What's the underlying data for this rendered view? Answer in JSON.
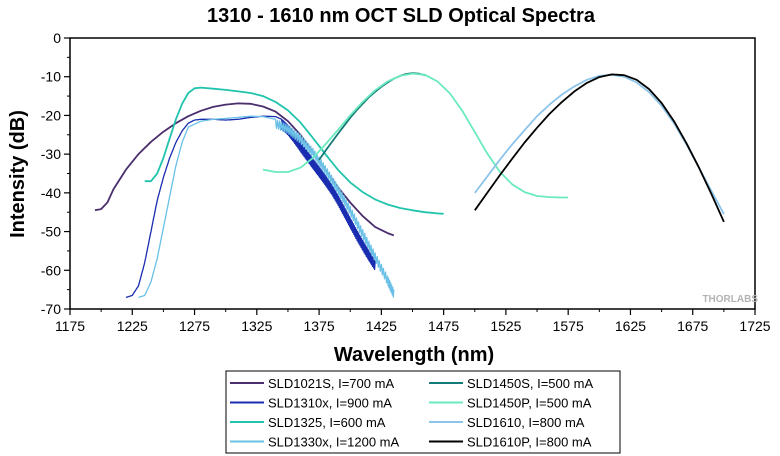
{
  "chart_data": {
    "type": "line",
    "title": "1310 - 1610 nm OCT SLD Optical Spectra",
    "xlabel": "Wavelength (nm)",
    "ylabel": "Intensity (dB)",
    "xlim": [
      1175,
      1725
    ],
    "ylim": [
      -70,
      0
    ],
    "xticks": [
      1175,
      1225,
      1275,
      1325,
      1375,
      1425,
      1475,
      1525,
      1575,
      1625,
      1675,
      1725
    ],
    "xtick_labels": [
      "1175",
      "1225",
      "1275",
      "1325",
      "1375",
      "1425",
      "1475",
      "1525",
      "1575",
      "1625",
      "1675",
      "1725"
    ],
    "yticks": [
      0,
      -10,
      -20,
      -30,
      -40,
      -50,
      -60,
      -70
    ],
    "ytick_labels": [
      "0",
      "-10",
      "-20",
      "-30",
      "-40",
      "-50",
      "-60",
      "-70"
    ],
    "grid": false,
    "legend_position": "bottom-center",
    "watermark": "THORLABS",
    "series": [
      {
        "name": "SLD1021S, I=700 mA",
        "color": "#4b2e6e",
        "x": [
          1195,
          1200,
          1205,
          1210,
          1220,
          1230,
          1240,
          1250,
          1260,
          1270,
          1280,
          1290,
          1300,
          1310,
          1320,
          1330,
          1340,
          1350,
          1360,
          1370,
          1380,
          1390,
          1400,
          1410,
          1420,
          1430,
          1435
        ],
        "y": [
          -44.5,
          -44.2,
          -42.5,
          -39,
          -34,
          -30,
          -26.8,
          -24.2,
          -22,
          -20.2,
          -18.8,
          -17.8,
          -17.2,
          -16.9,
          -17,
          -17.7,
          -19,
          -21.5,
          -25,
          -29.5,
          -34,
          -38.5,
          -42.5,
          -46,
          -48.8,
          -50.4,
          -51
        ]
      },
      {
        "name": "SLD1310x, I=900 mA",
        "color": "#1a2db0",
        "noise": 2.5,
        "noise_from": 1345,
        "x": [
          1220,
          1225,
          1230,
          1235,
          1240,
          1245,
          1250,
          1255,
          1260,
          1265,
          1270,
          1275,
          1280,
          1290,
          1300,
          1310,
          1320,
          1330,
          1340,
          1345,
          1350,
          1355,
          1360,
          1365,
          1370,
          1375,
          1380,
          1385,
          1390,
          1395,
          1400,
          1405,
          1410,
          1415,
          1420
        ],
        "y": [
          -67,
          -66.5,
          -64,
          -58,
          -50,
          -42,
          -36,
          -31,
          -27,
          -24,
          -22,
          -21.2,
          -21,
          -21,
          -21.2,
          -21,
          -20.5,
          -20.2,
          -20.3,
          -21,
          -22.5,
          -24.5,
          -26.8,
          -29,
          -31.2,
          -33.3,
          -35.5,
          -37.8,
          -40.5,
          -43.5,
          -46.5,
          -49.5,
          -52.3,
          -55,
          -57.5
        ]
      },
      {
        "name": "SLD1325, I=600 mA",
        "color": "#20c4ac",
        "x": [
          1235,
          1240,
          1245,
          1250,
          1255,
          1260,
          1265,
          1270,
          1275,
          1280,
          1290,
          1300,
          1310,
          1320,
          1330,
          1340,
          1350,
          1360,
          1370,
          1380,
          1390,
          1400,
          1410,
          1420,
          1430,
          1440,
          1450,
          1460,
          1470,
          1475
        ],
        "y": [
          -37,
          -37,
          -35,
          -31,
          -26,
          -21,
          -17,
          -14.2,
          -13,
          -12.8,
          -13.1,
          -13.4,
          -13.8,
          -14.2,
          -15,
          -16.5,
          -18.7,
          -21.8,
          -25.8,
          -30,
          -34,
          -37.3,
          -39.8,
          -41.7,
          -43,
          -43.9,
          -44.5,
          -45,
          -45.3,
          -45.4
        ]
      },
      {
        "name": "SLD1330x, I=1200 mA",
        "color": "#6ac0e6",
        "noise": 2.2,
        "noise_from": 1340,
        "x": [
          1230,
          1235,
          1240,
          1245,
          1250,
          1255,
          1260,
          1265,
          1270,
          1280,
          1290,
          1300,
          1310,
          1320,
          1330,
          1340,
          1350,
          1360,
          1370,
          1380,
          1390,
          1400,
          1410,
          1420,
          1430,
          1435
        ],
        "y": [
          -67,
          -66.5,
          -63,
          -57,
          -49,
          -41,
          -33,
          -27,
          -23,
          -21.5,
          -21,
          -20.8,
          -20.5,
          -20.2,
          -20.3,
          -21,
          -22.5,
          -25,
          -28.5,
          -33,
          -38,
          -43.5,
          -49.5,
          -55.5,
          -61.5,
          -65
        ]
      },
      {
        "name": "SLD1450S, I=500 mA",
        "color": "#147a78",
        "x": [
          1375,
          1380,
          1385,
          1390,
          1395,
          1400,
          1405,
          1410,
          1415,
          1420,
          1425,
          1430,
          1435,
          1440,
          1445,
          1450,
          1455,
          1460
        ],
        "y": [
          -31.5,
          -29.2,
          -27,
          -24.8,
          -22.7,
          -20.6,
          -18.7,
          -17,
          -15.3,
          -13.9,
          -12.6,
          -11.5,
          -10.5,
          -9.8,
          -9.3,
          -9.1,
          -9.2,
          -9.6
        ]
      },
      {
        "name": "SLD1450P, I=500 mA",
        "color": "#6aeabe",
        "x": [
          1330,
          1340,
          1350,
          1360,
          1370,
          1380,
          1390,
          1400,
          1410,
          1420,
          1430,
          1440,
          1450,
          1460,
          1470,
          1480,
          1490,
          1500,
          1510,
          1520,
          1530,
          1540,
          1550,
          1560,
          1570,
          1575
        ],
        "y": [
          -34,
          -34.6,
          -34.6,
          -33.5,
          -31,
          -27.5,
          -23.8,
          -20,
          -16.5,
          -13.5,
          -11.2,
          -9.8,
          -9.2,
          -9.5,
          -11.2,
          -14.3,
          -18.8,
          -24.3,
          -29.8,
          -34.5,
          -37.8,
          -39.8,
          -40.8,
          -41.1,
          -41.2,
          -41.2
        ]
      },
      {
        "name": "SLD1610, I=800 mA",
        "color": "#8cc4ea",
        "x": [
          1500,
          1510,
          1520,
          1530,
          1540,
          1550,
          1560,
          1570,
          1580,
          1590,
          1600,
          1610,
          1620,
          1630,
          1640,
          1650,
          1660,
          1670,
          1680,
          1690,
          1700
        ],
        "y": [
          -40,
          -35.8,
          -31.5,
          -27.5,
          -23.8,
          -20.2,
          -17.2,
          -14.6,
          -12.5,
          -10.8,
          -9.8,
          -9.5,
          -10,
          -11.5,
          -14,
          -17.5,
          -22,
          -27.5,
          -33.5,
          -39.5,
          -45.5
        ]
      },
      {
        "name": "SLD1610P, I=800 mA",
        "color": "#000000",
        "x": [
          1500,
          1510,
          1520,
          1530,
          1540,
          1550,
          1560,
          1570,
          1580,
          1590,
          1600,
          1610,
          1620,
          1630,
          1640,
          1650,
          1660,
          1670,
          1680,
          1690,
          1700
        ],
        "y": [
          -44.5,
          -40,
          -35.5,
          -31.2,
          -27,
          -23.2,
          -19.6,
          -16.5,
          -13.8,
          -11.6,
          -10.1,
          -9.4,
          -9.6,
          -10.8,
          -13.2,
          -16.8,
          -21.5,
          -27.2,
          -33.5,
          -40.3,
          -47.5
        ]
      }
    ]
  }
}
